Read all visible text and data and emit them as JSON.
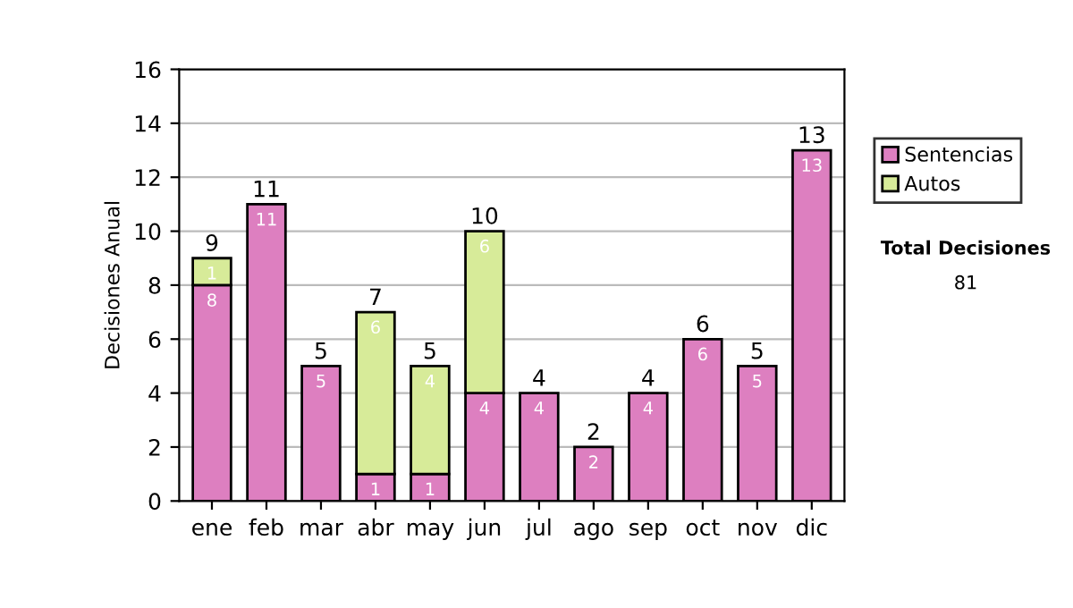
{
  "chart_data": {
    "type": "bar",
    "stacked": true,
    "ylabel": "Decisiones Anual",
    "categories": [
      "ene",
      "feb",
      "mar",
      "abr",
      "may",
      "jun",
      "jul",
      "ago",
      "sep",
      "oct",
      "nov",
      "dic"
    ],
    "series": [
      {
        "name": "Sentencias",
        "color": "#dd7fc0",
        "values": [
          8,
          11,
          5,
          1,
          1,
          4,
          4,
          2,
          4,
          6,
          5,
          13
        ],
        "value_labels": [
          "8",
          "11",
          "5",
          "1",
          "1",
          "4",
          "4",
          "2",
          "4",
          "6",
          "5",
          "13"
        ]
      },
      {
        "name": "Autos",
        "color": "#d7eb99",
        "values": [
          1,
          0,
          0,
          6,
          4,
          6,
          0,
          0,
          0,
          0,
          0,
          0
        ],
        "value_labels": [
          "1",
          null,
          null,
          "6",
          "4",
          "6",
          null,
          null,
          null,
          null,
          null,
          null
        ]
      }
    ],
    "totals": [
      "9",
      "11",
      "5",
      "7",
      "5",
      "10",
      "4",
      "2",
      "4",
      "6",
      "5",
      "13"
    ],
    "ylim": [
      0,
      16
    ],
    "yticks": [
      0,
      2,
      4,
      6,
      8,
      10,
      12,
      14,
      16
    ],
    "grid": "y",
    "legend": "right",
    "annotations": [
      "Total Decisiones",
      "81"
    ]
  }
}
